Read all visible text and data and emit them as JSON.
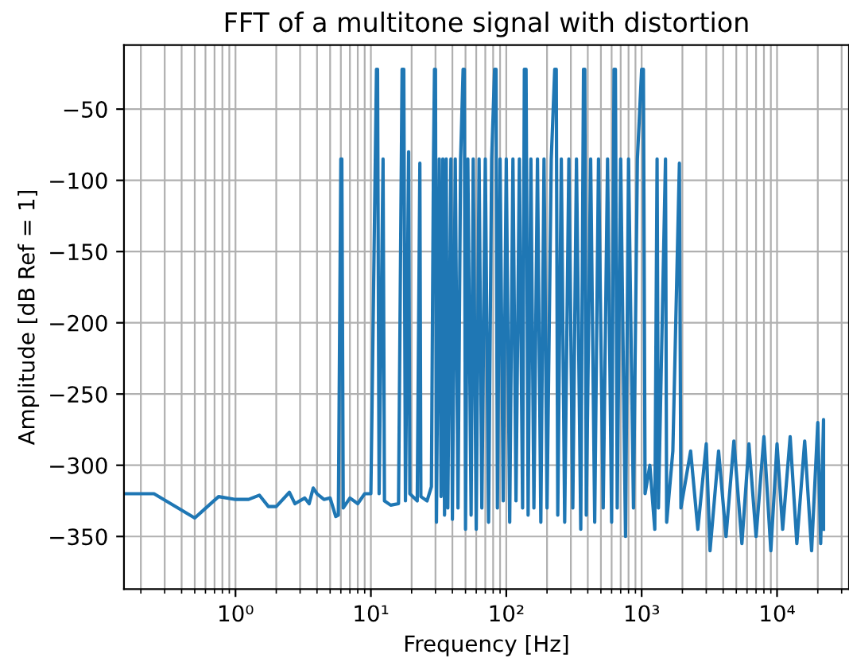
{
  "chart_data": {
    "type": "line",
    "title": "FFT of a multitone signal with distortion",
    "xlabel": "Frequency [Hz]",
    "ylabel": "Amplitude [dB Ref = 1]",
    "log": "x",
    "grid": true,
    "xlim": [
      0.15,
      34000
    ],
    "ylim": [
      -387,
      -5
    ],
    "xticks": [
      {
        "value": 1,
        "label": "10⁰"
      },
      {
        "value": 10,
        "label": "10¹"
      },
      {
        "value": 100,
        "label": "10²"
      },
      {
        "value": 1000,
        "label": "10³"
      },
      {
        "value": 10000,
        "label": "10⁴"
      }
    ],
    "yticks": [
      {
        "value": -50,
        "label": "−50"
      },
      {
        "value": -100,
        "label": "−100"
      },
      {
        "value": -150,
        "label": "−150"
      },
      {
        "value": -200,
        "label": "−200"
      },
      {
        "value": -250,
        "label": "−250"
      },
      {
        "value": -300,
        "label": "−300"
      },
      {
        "value": -350,
        "label": "−350"
      }
    ],
    "series": [
      {
        "color": "#1f77b4",
        "x": [
          0.15,
          0.25,
          0.5,
          0.75,
          1.0,
          1.25,
          1.5,
          1.75,
          2.0,
          2.5,
          2.75,
          3.25,
          3.5,
          3.75,
          4.0,
          4.5,
          5.0,
          5.5,
          5.75,
          6.0,
          6.1,
          6.25,
          7,
          8,
          9,
          10,
          11,
          11.2,
          11.5,
          12.3,
          12.6,
          14,
          16,
          17,
          17.5,
          18,
          19,
          19.4,
          22,
          23,
          23.4,
          26,
          28,
          29,
          29.5,
          30,
          30.5,
          32,
          33,
          34,
          35,
          36,
          37,
          39,
          40,
          42,
          44,
          46,
          48,
          49,
          50,
          52,
          55,
          57,
          60,
          63,
          66,
          70,
          74,
          78,
          82,
          84,
          86,
          90,
          95,
          100,
          106,
          112,
          118,
          125,
          132,
          136,
          140,
          145,
          152,
          160,
          170,
          180,
          190,
          200,
          215,
          228,
          234,
          240,
          255,
          270,
          290,
          310,
          330,
          355,
          372,
          380,
          390,
          420,
          450,
          480,
          520,
          560,
          600,
          625,
          640,
          660,
          700,
          760,
          800,
          870,
          930,
          1000,
          1030,
          1060,
          1150,
          1250,
          1300,
          1330,
          1500,
          1530,
          1700,
          1900,
          1950,
          2300,
          2600,
          3000,
          3200,
          3700,
          4200,
          4800,
          5500,
          6200,
          7000,
          8000,
          9000,
          10000,
          11000,
          12500,
          14000,
          16000,
          18000,
          20000,
          21000,
          22050,
          22050
        ],
        "values": [
          -320,
          -320,
          -337,
          -322,
          -324,
          -324,
          -321,
          -329,
          -329,
          -319,
          -327,
          -323,
          -327,
          -316,
          -320,
          -324,
          -323,
          -336,
          -335,
          -85,
          -85,
          -330,
          -323,
          -327,
          -320,
          -320,
          -22,
          -22,
          -320,
          -85,
          -325,
          -328,
          -327,
          -22,
          -22,
          -325,
          -80,
          -320,
          -325,
          -88,
          -322,
          -325,
          -315,
          -85,
          -22,
          -22,
          -340,
          -85,
          -322,
          -85,
          -335,
          -85,
          -330,
          -85,
          -338,
          -85,
          -330,
          -85,
          -22,
          -22,
          -345,
          -85,
          -335,
          -85,
          -345,
          -85,
          -330,
          -85,
          -340,
          -85,
          -22,
          -22,
          -330,
          -85,
          -325,
          -85,
          -340,
          -85,
          -325,
          -85,
          -330,
          -22,
          -22,
          -335,
          -85,
          -330,
          -85,
          -340,
          -85,
          -330,
          -85,
          -22,
          -22,
          -335,
          -85,
          -340,
          -85,
          -330,
          -85,
          -345,
          -22,
          -22,
          -335,
          -85,
          -340,
          -85,
          -330,
          -85,
          -340,
          -22,
          -22,
          -330,
          -85,
          -350,
          -85,
          -330,
          -85,
          -22,
          -22,
          -320,
          -300,
          -345,
          -85,
          -330,
          -85,
          -340,
          -290,
          -88,
          -330,
          -290,
          -345,
          -285,
          -360,
          -290,
          -350,
          -283,
          -355,
          -285,
          -350,
          -280,
          -360,
          -285,
          -345,
          -280,
          -355,
          -283,
          -360,
          -270,
          -355,
          -268,
          -345
        ]
      }
    ]
  }
}
